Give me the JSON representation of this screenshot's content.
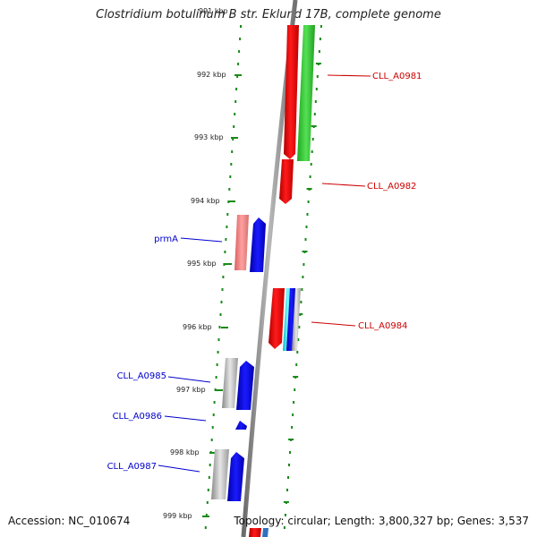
{
  "title": "Clostridium botulinum B str. Eklund 17B, complete genome",
  "accession": "Accession: NC_010674",
  "topology": "Topology: circular; Length: 3,800,327 bp; Genes: 3,537",
  "ruler_labels": [
    "991 kbp",
    "992 kbp",
    "993 kbp",
    "994 kbp",
    "995 kbp",
    "996 kbp",
    "997 kbp",
    "998 kbp",
    "999 kbp"
  ],
  "gene_labels": {
    "right": [
      "CLL_A0981",
      "CLL_A0982",
      "CLL_A0984"
    ],
    "left": [
      "prmA",
      "CLL_A0985",
      "CLL_A0986",
      "CLL_A0987"
    ]
  },
  "colors": {
    "forward_strand": "#0000ee",
    "reverse_strand": "#ee0000",
    "green_feature": "#33cc33",
    "cyan_feature": "#00e5ee",
    "pink_feature": "#f08080",
    "gray_feature": "#b0b0b0",
    "backbone": "#888888",
    "tick": "#1a8a1a",
    "right_label": "#cc0000",
    "left_label": "#0000cc"
  }
}
